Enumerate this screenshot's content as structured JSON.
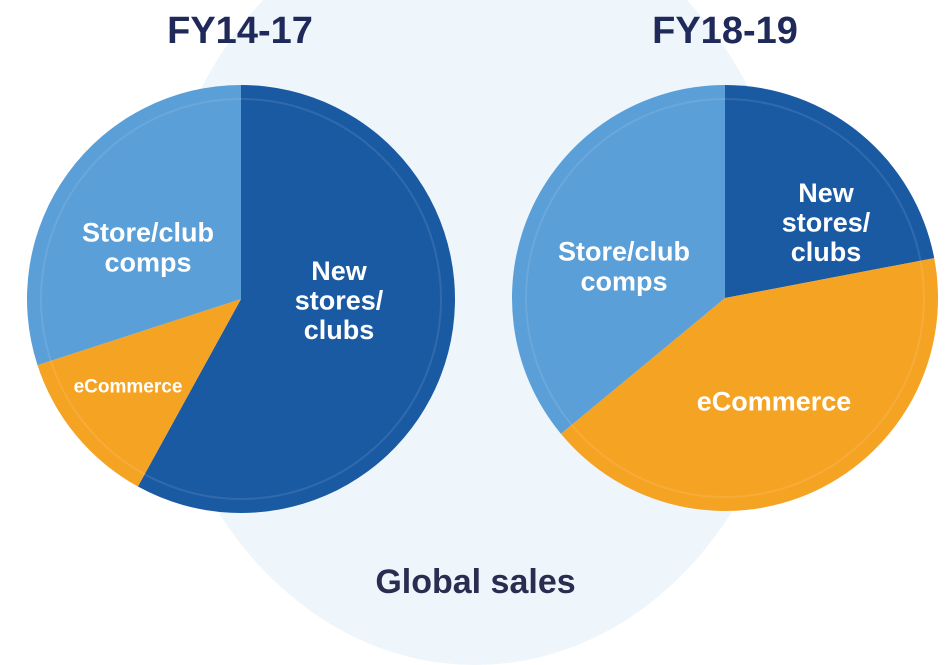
{
  "colors": {
    "background_circle": "#eef5fb",
    "dark_blue": "#1a5aa3",
    "mid_blue": "#5a9fd8",
    "orange": "#f5a323",
    "title": "#1f2a5a"
  },
  "caption": "Global sales",
  "chart_data": [
    {
      "type": "pie",
      "title": "FY14-17",
      "slices": [
        {
          "label": "New stores/ clubs",
          "label_lines": [
            "New",
            "stores/",
            "clubs"
          ],
          "value": 58,
          "color": "#1a5aa3"
        },
        {
          "label": "eCommerce",
          "label_lines": [
            "eCommerce"
          ],
          "value": 12,
          "color": "#f5a323"
        },
        {
          "label": "Store/club comps",
          "label_lines": [
            "Store/club",
            "comps"
          ],
          "value": 30,
          "color": "#5a9fd8"
        }
      ]
    },
    {
      "type": "pie",
      "title": "FY18-19",
      "slices": [
        {
          "label": "New stores/ clubs",
          "label_lines": [
            "New",
            "stores/",
            "clubs"
          ],
          "value": 22,
          "color": "#1a5aa3"
        },
        {
          "label": "eCommerce",
          "label_lines": [
            "eCommerce"
          ],
          "value": 42,
          "color": "#f5a323"
        },
        {
          "label": "Store/club comps",
          "label_lines": [
            "Store/club",
            "comps"
          ],
          "value": 36,
          "color": "#5a9fd8"
        }
      ]
    }
  ]
}
